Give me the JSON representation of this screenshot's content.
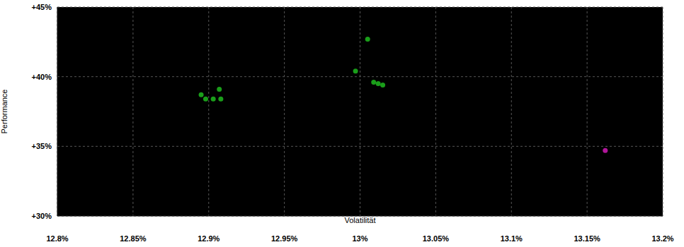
{
  "chart_data": {
    "type": "scatter",
    "x_label": "Volatilität",
    "y_label": "Performance",
    "xlim": [
      12.8,
      13.2
    ],
    "ylim": [
      30,
      45
    ],
    "xticks": [
      {
        "value": 12.8,
        "label": "12.8%"
      },
      {
        "value": 12.85,
        "label": "12.85%"
      },
      {
        "value": 12.9,
        "label": "12.9%"
      },
      {
        "value": 12.95,
        "label": "12.95%"
      },
      {
        "value": 13.0,
        "label": "13%"
      },
      {
        "value": 13.05,
        "label": "13.05%"
      },
      {
        "value": 13.1,
        "label": "13.1%"
      },
      {
        "value": 13.15,
        "label": "13.15%"
      },
      {
        "value": 13.2,
        "label": "13.2%"
      }
    ],
    "yticks": [
      {
        "value": 30,
        "label": "+30%"
      },
      {
        "value": 35,
        "label": "+35%"
      },
      {
        "value": 40,
        "label": "+40%"
      },
      {
        "value": 45,
        "label": "+45%"
      }
    ],
    "grid": true,
    "marker": "circle",
    "series": [
      {
        "color": "#1a9e1a",
        "x": [
          12.895,
          12.898,
          12.907,
          12.903,
          12.908,
          12.997,
          13.005,
          13.009,
          13.012,
          13.015
        ],
        "values": [
          38.7,
          38.4,
          39.1,
          38.4,
          38.4,
          40.4,
          42.7,
          39.6,
          39.5,
          39.4
        ]
      },
      {
        "color": "#b0169a",
        "x": [
          13.162
        ],
        "values": [
          34.7
        ]
      }
    ]
  }
}
